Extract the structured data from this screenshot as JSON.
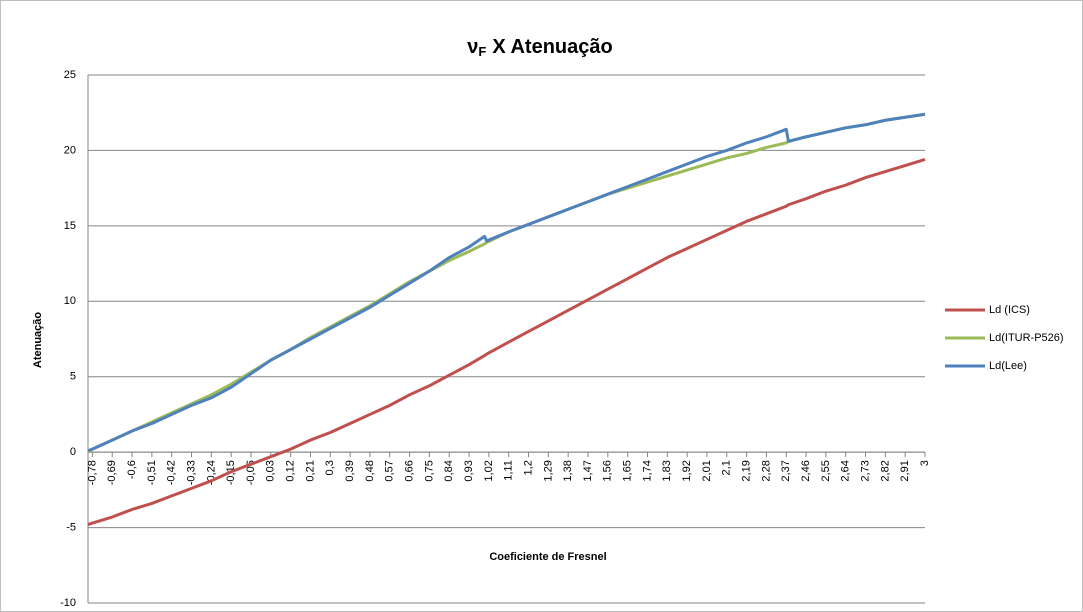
{
  "chart_data": {
    "type": "line",
    "title_symbol": "ν",
    "title_subscript": "F",
    "title": "X Atenuação",
    "x_label": "Coeficiente de Fresnel",
    "y_label": "Atenuação",
    "x": [
      -0.8,
      -0.78,
      -0.69,
      -0.6,
      -0.51,
      -0.42,
      -0.33,
      -0.24,
      -0.15,
      -0.06,
      0.03,
      0.12,
      0.21,
      0.3,
      0.39,
      0.48,
      0.57,
      0.66,
      0.75,
      0.84,
      0.93,
      1.0,
      1.01,
      1.11,
      1.2,
      1.29,
      1.38,
      1.47,
      1.56,
      1.65,
      1.74,
      1.83,
      1.92,
      2.01,
      2.1,
      2.19,
      2.28,
      2.37,
      2.38,
      2.46,
      2.55,
      2.64,
      2.73,
      2.82,
      2.91,
      3
    ],
    "series": [
      {
        "name": "Ld (ICS)",
        "color": "#c0504d",
        "values": [
          -4.8,
          -4.7,
          -4.3,
          -3.8,
          -3.4,
          -2.9,
          -2.4,
          -1.9,
          -1.3,
          -0.8,
          -0.3,
          0.2,
          0.8,
          1.3,
          1.9,
          2.5,
          3.1,
          3.8,
          4.4,
          5.1,
          5.8,
          6.4,
          6.5,
          7.3,
          8.0,
          8.7,
          9.4,
          10.1,
          10.8,
          11.5,
          12.2,
          12.9,
          13.5,
          14.1,
          14.7,
          15.3,
          15.8,
          16.3,
          16.4,
          16.8,
          17.3,
          17.7,
          18.2,
          18.6,
          19.0,
          19.4
        ]
      },
      {
        "name": "Ld(ITUR-P526)",
        "color": "#9bbb59",
        "values": [
          0,
          0.2,
          0.8,
          1.4,
          2.0,
          2.6,
          3.2,
          3.8,
          4.5,
          5.3,
          6.1,
          6.8,
          7.6,
          8.3,
          9.0,
          9.7,
          10.5,
          11.3,
          12.0,
          12.7,
          13.3,
          13.8,
          13.9,
          14.6,
          15.1,
          15.6,
          16.1,
          16.6,
          17.1,
          17.5,
          17.9,
          18.3,
          18.7,
          19.1,
          19.5,
          19.8,
          20.2,
          20.5,
          20.6,
          20.9,
          21.2,
          21.5,
          21.7,
          22.0,
          22.2,
          22.4
        ]
      },
      {
        "name": "Ld(Lee)",
        "color": "#4f81bd",
        "values": [
          0.1,
          0.2,
          0.8,
          1.4,
          1.9,
          2.5,
          3.1,
          3.6,
          4.3,
          5.2,
          6.1,
          6.8,
          7.5,
          8.2,
          8.9,
          9.6,
          10.4,
          11.2,
          12.0,
          12.9,
          13.6,
          14.3,
          14.0,
          14.6,
          15.1,
          15.6,
          16.1,
          16.6,
          17.1,
          17.6,
          18.1,
          18.6,
          19.1,
          19.6,
          20.0,
          20.5,
          20.9,
          21.4,
          20.6,
          20.9,
          21.2,
          21.5,
          21.7,
          22.0,
          22.2,
          22.4
        ]
      }
    ],
    "xlim": [
      -0.8,
      3
    ],
    "xticks": [
      {
        "value": -0.78,
        "label": "-0,78"
      },
      {
        "value": -0.69,
        "label": "-0,69"
      },
      {
        "value": -0.6,
        "label": "-0,6"
      },
      {
        "value": -0.51,
        "label": "-0,51"
      },
      {
        "value": -0.42,
        "label": "-0,42"
      },
      {
        "value": -0.33,
        "label": "-0,33"
      },
      {
        "value": -0.24,
        "label": "-0,24"
      },
      {
        "value": -0.15,
        "label": "-0,15"
      },
      {
        "value": -0.06,
        "label": "-0,06"
      },
      {
        "value": 0.03,
        "label": "0,03"
      },
      {
        "value": 0.12,
        "label": "0,12"
      },
      {
        "value": 0.21,
        "label": "0,21"
      },
      {
        "value": 0.3,
        "label": "0,3"
      },
      {
        "value": 0.39,
        "label": "0,39"
      },
      {
        "value": 0.48,
        "label": "0,48"
      },
      {
        "value": 0.57,
        "label": "0,57"
      },
      {
        "value": 0.66,
        "label": "0,66"
      },
      {
        "value": 0.75,
        "label": "0,75"
      },
      {
        "value": 0.84,
        "label": "0,84"
      },
      {
        "value": 0.93,
        "label": "0,93"
      },
      {
        "value": 1.02,
        "label": "1,02"
      },
      {
        "value": 1.11,
        "label": "1,11"
      },
      {
        "value": 1.2,
        "label": "1,2"
      },
      {
        "value": 1.29,
        "label": "1,29"
      },
      {
        "value": 1.38,
        "label": "1,38"
      },
      {
        "value": 1.47,
        "label": "1,47"
      },
      {
        "value": 1.56,
        "label": "1,56"
      },
      {
        "value": 1.65,
        "label": "1,65"
      },
      {
        "value": 1.74,
        "label": "1,74"
      },
      {
        "value": 1.83,
        "label": "1,83"
      },
      {
        "value": 1.92,
        "label": "1,92"
      },
      {
        "value": 2.01,
        "label": "2,01"
      },
      {
        "value": 2.1,
        "label": "2,1"
      },
      {
        "value": 2.19,
        "label": "2,19"
      },
      {
        "value": 2.28,
        "label": "2,28"
      },
      {
        "value": 2.37,
        "label": "2,37"
      },
      {
        "value": 2.46,
        "label": "2,46"
      },
      {
        "value": 2.55,
        "label": "2,55"
      },
      {
        "value": 2.64,
        "label": "2,64"
      },
      {
        "value": 2.73,
        "label": "2,73"
      },
      {
        "value": 2.82,
        "label": "2,82"
      },
      {
        "value": 2.91,
        "label": "2,91"
      },
      3
    ],
    "ylim": [
      -10,
      25
    ],
    "yticks": [
      -10,
      -5,
      0,
      5,
      10,
      15,
      20,
      25
    ],
    "grid": true,
    "legend": "right"
  }
}
